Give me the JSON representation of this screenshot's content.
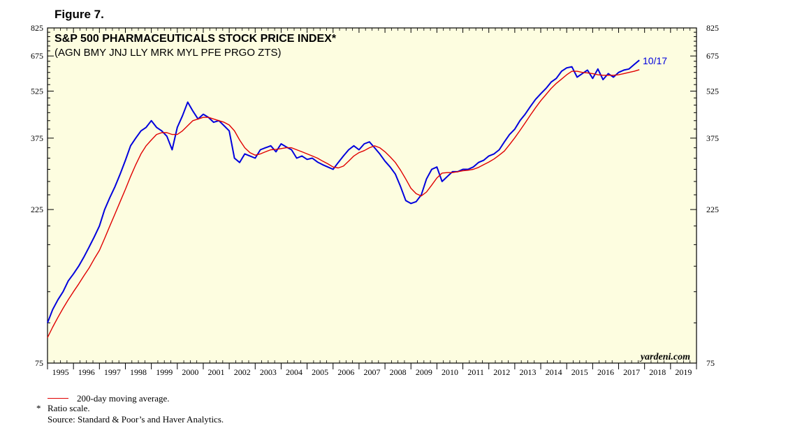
{
  "figure_label": "Figure 7.",
  "footnotes": {
    "ma_legend": "200-day moving average.",
    "ratio_note": "Ratio scale.",
    "ratio_marker": "*",
    "source": "Source: Standard & Poor’s and Haver Analytics."
  },
  "chart_data": {
    "type": "line",
    "title": "S&P 500 PHARMACEUTICALS STOCK PRICE INDEX*",
    "subtitle": "(AGN BMY JNJ LLY MRK MYL PFE PRGO ZTS)",
    "watermark": "yardeni.com",
    "last_label": "10/17",
    "y_scale": "log",
    "ylim": [
      75,
      825
    ],
    "y_ticks": [
      75,
      225,
      375,
      525,
      675,
      825
    ],
    "y_tick_labels": [
      "75",
      "225",
      "375",
      "525",
      "675",
      "825"
    ],
    "xlim": [
      1995,
      2020
    ],
    "x_labels": [
      "1995",
      "1996",
      "1997",
      "1998",
      "1999",
      "2000",
      "2001",
      "2002",
      "2003",
      "2004",
      "2005",
      "2006",
      "2007",
      "2008",
      "2009",
      "2010",
      "2011",
      "2012",
      "2013",
      "2014",
      "2015",
      "2016",
      "2017",
      "2018",
      "2019"
    ],
    "colors": {
      "price": "#0000dd",
      "ma": "#e00000",
      "background": "#fdfde0",
      "last_label": "#0000dd"
    },
    "series": [
      {
        "name": "Index",
        "color": "#0000dd",
        "x": [
          1995.0,
          1995.2,
          1995.4,
          1995.6,
          1995.8,
          1996.0,
          1996.2,
          1996.4,
          1996.6,
          1996.8,
          1997.0,
          1997.2,
          1997.4,
          1997.6,
          1997.8,
          1998.0,
          1998.2,
          1998.4,
          1998.6,
          1998.8,
          1999.0,
          1999.2,
          1999.4,
          1999.6,
          1999.8,
          2000.0,
          2000.2,
          2000.4,
          2000.6,
          2000.8,
          2001.0,
          2001.2,
          2001.4,
          2001.6,
          2001.8,
          2002.0,
          2002.2,
          2002.4,
          2002.6,
          2002.8,
          2003.0,
          2003.2,
          2003.4,
          2003.6,
          2003.8,
          2004.0,
          2004.2,
          2004.4,
          2004.6,
          2004.8,
          2005.0,
          2005.2,
          2005.4,
          2005.6,
          2005.8,
          2006.0,
          2006.2,
          2006.4,
          2006.6,
          2006.8,
          2007.0,
          2007.2,
          2007.4,
          2007.6,
          2007.8,
          2008.0,
          2008.2,
          2008.4,
          2008.6,
          2008.8,
          2009.0,
          2009.2,
          2009.4,
          2009.6,
          2009.8,
          2010.0,
          2010.2,
          2010.4,
          2010.6,
          2010.8,
          2011.0,
          2011.2,
          2011.4,
          2011.6,
          2011.8,
          2012.0,
          2012.2,
          2012.4,
          2012.6,
          2012.8,
          2013.0,
          2013.2,
          2013.4,
          2013.6,
          2013.8,
          2014.0,
          2014.2,
          2014.4,
          2014.6,
          2014.8,
          2015.0,
          2015.2,
          2015.4,
          2015.6,
          2015.8,
          2016.0,
          2016.2,
          2016.4,
          2016.6,
          2016.8,
          2017.0,
          2017.2,
          2017.4,
          2017.6,
          2017.8
        ],
        "values": [
          100,
          110,
          118,
          125,
          135,
          142,
          150,
          160,
          172,
          185,
          200,
          225,
          245,
          265,
          290,
          320,
          355,
          375,
          395,
          405,
          425,
          405,
          395,
          380,
          345,
          405,
          440,
          485,
          455,
          430,
          445,
          435,
          420,
          425,
          410,
          395,
          325,
          315,
          335,
          330,
          325,
          345,
          350,
          355,
          340,
          360,
          352,
          345,
          325,
          330,
          322,
          325,
          316,
          310,
          305,
          300,
          315,
          330,
          345,
          355,
          345,
          360,
          365,
          350,
          335,
          318,
          305,
          290,
          265,
          240,
          235,
          238,
          250,
          280,
          300,
          305,
          275,
          285,
          295,
          295,
          300,
          300,
          305,
          315,
          320,
          330,
          335,
          345,
          365,
          385,
          400,
          425,
          445,
          470,
          495,
          515,
          535,
          560,
          575,
          605,
          620,
          625,
          580,
          595,
          610,
          575,
          615,
          570,
          595,
          580,
          600,
          610,
          615,
          635,
          655
        ]
      },
      {
        "name": "200-day moving average",
        "color": "#e00000",
        "x": [
          1995.0,
          1995.2,
          1995.4,
          1995.6,
          1995.8,
          1996.0,
          1996.2,
          1996.4,
          1996.6,
          1996.8,
          1997.0,
          1997.2,
          1997.4,
          1997.6,
          1997.8,
          1998.0,
          1998.2,
          1998.4,
          1998.6,
          1998.8,
          1999.0,
          1999.2,
          1999.4,
          1999.6,
          1999.8,
          2000.0,
          2000.2,
          2000.4,
          2000.6,
          2000.8,
          2001.0,
          2001.2,
          2001.4,
          2001.6,
          2001.8,
          2002.0,
          2002.2,
          2002.4,
          2002.6,
          2002.8,
          2003.0,
          2003.2,
          2003.4,
          2003.6,
          2003.8,
          2004.0,
          2004.2,
          2004.4,
          2004.6,
          2004.8,
          2005.0,
          2005.2,
          2005.4,
          2005.6,
          2005.8,
          2006.0,
          2006.2,
          2006.4,
          2006.6,
          2006.8,
          2007.0,
          2007.2,
          2007.4,
          2007.6,
          2007.8,
          2008.0,
          2008.2,
          2008.4,
          2008.6,
          2008.8,
          2009.0,
          2009.2,
          2009.4,
          2009.6,
          2009.8,
          2010.0,
          2010.2,
          2010.4,
          2010.6,
          2010.8,
          2011.0,
          2011.2,
          2011.4,
          2011.6,
          2011.8,
          2012.0,
          2012.2,
          2012.4,
          2012.6,
          2012.8,
          2013.0,
          2013.2,
          2013.4,
          2013.6,
          2013.8,
          2014.0,
          2014.2,
          2014.4,
          2014.6,
          2014.8,
          2015.0,
          2015.2,
          2015.4,
          2015.6,
          2015.8,
          2016.0,
          2016.2,
          2016.4,
          2016.6,
          2016.8,
          2017.0,
          2017.2,
          2017.4,
          2017.6,
          2017.8
        ],
        "values": [
          90,
          97,
          104,
          111,
          118,
          125,
          132,
          140,
          148,
          158,
          168,
          183,
          200,
          218,
          238,
          260,
          285,
          310,
          335,
          355,
          370,
          385,
          390,
          390,
          385,
          385,
          395,
          410,
          425,
          430,
          435,
          435,
          430,
          425,
          420,
          412,
          395,
          370,
          350,
          338,
          332,
          335,
          340,
          345,
          346,
          348,
          350,
          350,
          345,
          340,
          335,
          330,
          325,
          318,
          312,
          305,
          303,
          307,
          318,
          330,
          338,
          343,
          350,
          355,
          350,
          340,
          328,
          315,
          298,
          280,
          262,
          252,
          248,
          255,
          268,
          282,
          292,
          293,
          293,
          295,
          297,
          298,
          300,
          304,
          310,
          316,
          323,
          332,
          342,
          358,
          376,
          396,
          418,
          442,
          466,
          490,
          512,
          535,
          555,
          572,
          590,
          605,
          605,
          600,
          598,
          595,
          590,
          588,
          588,
          588,
          590,
          595,
          600,
          605,
          612
        ]
      }
    ]
  }
}
